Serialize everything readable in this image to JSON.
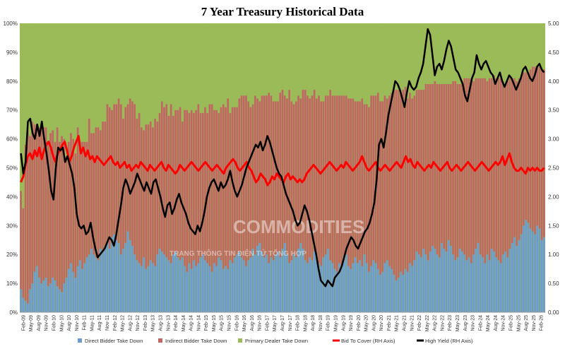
{
  "chart_data": {
    "type": "bar",
    "title": "7 Year Treasury Historical Data",
    "left_axis": {
      "min": 0,
      "max": 100,
      "unit": "%",
      "ticks": [
        "0%",
        "10%",
        "20%",
        "30%",
        "40%",
        "50%",
        "60%",
        "70%",
        "80%",
        "90%",
        "100%"
      ]
    },
    "right_axis": {
      "min": 0,
      "max": 5,
      "ticks": [
        "0.00",
        "0.50",
        "1.00",
        "1.50",
        "2.00",
        "2.50",
        "3.00",
        "3.50",
        "4.00",
        "4.50",
        "5.00"
      ]
    },
    "x_ticks": [
      "Feb-09",
      "May-09",
      "Aug-09",
      "Nov-09",
      "Feb-10",
      "May-10",
      "Aug-10",
      "Nov-10",
      "Feb-11",
      "May-11",
      "Aug-11",
      "Nov-11",
      "Feb-12",
      "May-12",
      "Aug-12",
      "Nov-12",
      "Feb-13",
      "May-13",
      "Aug-13",
      "Nov-13",
      "Feb-14",
      "May-14",
      "Aug-14",
      "Nov-14",
      "Feb-15",
      "May-15",
      "Aug-15",
      "Nov-15",
      "Feb-16",
      "May-16",
      "Aug-16",
      "Nov-16",
      "Feb-17",
      "May-17",
      "Aug-17",
      "Nov-17",
      "Feb-18",
      "May-18",
      "Aug-18",
      "Nov-18",
      "Feb-19",
      "May-19",
      "Aug-19",
      "Nov-19",
      "Feb-20",
      "May-20",
      "Aug-20",
      "Nov-20",
      "Feb-21",
      "May-21",
      "Aug-21",
      "Nov-21",
      "Feb-22",
      "May-22",
      "Aug-22",
      "Nov-22",
      "Feb-23",
      "May-23",
      "Aug-23",
      "Nov-23",
      "Feb-24",
      "May-24",
      "Aug-24",
      "Nov-24",
      "Feb-25",
      "May-25",
      "Aug-25",
      "Nov-25",
      "Feb-26"
    ],
    "series": [
      {
        "name": "Direct Bidder Take Down",
        "axis": "left",
        "stack": "bars",
        "color": "#6b9bd2",
        "values": [
          8,
          5,
          4,
          3,
          8,
          10,
          14,
          16,
          12,
          10,
          11,
          12,
          9,
          10,
          12,
          11,
          9,
          8,
          7,
          10,
          12,
          15,
          17,
          14,
          12,
          16,
          18,
          15,
          17,
          19,
          20,
          22,
          20,
          19,
          18,
          22,
          21,
          23,
          24,
          22,
          26,
          27,
          25,
          24,
          20,
          22,
          24,
          28,
          25,
          23,
          20,
          18,
          17,
          16,
          19,
          15,
          16,
          18,
          17,
          16,
          20,
          22,
          21,
          20,
          19,
          18,
          17,
          20,
          21,
          19,
          18,
          19,
          16,
          14,
          17,
          15,
          18,
          16,
          17,
          19,
          20,
          18,
          17,
          16,
          14,
          17,
          16,
          19,
          18,
          15,
          16,
          15,
          18,
          17,
          19,
          20,
          21,
          19,
          18,
          16,
          18,
          19,
          22,
          20,
          23,
          24,
          21,
          19,
          20,
          17,
          19,
          18,
          20,
          21,
          19,
          22,
          24,
          20,
          17,
          18,
          20,
          19,
          22,
          24,
          22,
          18,
          17,
          19,
          18,
          21,
          20,
          17,
          16,
          19,
          20,
          22,
          18,
          17,
          15,
          14,
          17,
          16,
          18,
          20,
          16,
          15,
          17,
          19,
          17,
          18,
          16,
          20,
          17,
          14,
          16,
          18,
          17,
          15,
          13,
          14,
          17,
          18,
          16,
          15,
          13,
          11,
          12,
          14,
          13,
          15,
          14,
          17,
          16,
          18,
          21,
          20,
          19,
          22,
          20,
          18,
          21,
          23,
          22,
          20,
          19,
          24,
          22,
          21,
          25,
          23,
          20,
          18,
          19,
          22,
          21,
          20,
          18,
          19,
          17,
          20,
          22,
          24,
          20,
          19,
          17,
          20,
          18,
          22,
          21,
          19,
          18,
          17,
          20,
          21,
          19,
          22,
          24,
          26,
          23,
          25,
          27,
          30,
          32,
          31,
          29,
          28,
          27,
          30,
          29,
          25,
          26
        ]
      },
      {
        "name": "Indirect Bidder Take Down",
        "axis": "left",
        "stack": "bars",
        "color": "#c06663",
        "values": [
          34,
          31,
          54,
          60,
          53,
          56,
          51,
          49,
          52,
          55,
          53,
          52,
          50,
          52,
          51,
          48,
          55,
          51,
          54,
          50,
          42,
          44,
          45,
          46,
          43,
          48,
          41,
          44,
          42,
          40,
          47,
          40,
          42,
          45,
          46,
          41,
          45,
          43,
          48,
          49,
          44,
          45,
          47,
          50,
          52,
          45,
          47,
          44,
          49,
          50,
          52,
          49,
          52,
          48,
          44,
          50,
          49,
          48,
          47,
          51,
          46,
          47,
          52,
          51,
          53,
          50,
          55,
          48,
          49,
          51,
          53,
          47,
          54,
          56,
          52,
          55,
          51,
          54,
          55,
          50,
          49,
          53,
          52,
          56,
          58,
          53,
          54,
          50,
          53,
          57,
          55,
          59,
          51,
          54,
          52,
          51,
          53,
          56,
          57,
          59,
          55,
          52,
          50,
          55,
          51,
          49,
          54,
          56,
          55,
          59,
          56,
          55,
          53,
          52,
          57,
          55,
          51,
          54,
          60,
          55,
          52,
          54,
          53,
          50,
          55,
          59,
          58,
          55,
          57,
          56,
          54,
          58,
          57,
          54,
          55,
          53,
          59,
          58,
          60,
          61,
          58,
          59,
          57,
          55,
          58,
          59,
          57,
          54,
          56,
          55,
          58,
          52,
          55,
          57,
          59,
          57,
          58,
          61,
          60,
          59,
          58,
          56,
          59,
          61,
          64,
          66,
          65,
          62,
          64,
          63,
          60,
          59,
          58,
          57,
          56,
          57,
          58,
          55,
          59,
          61,
          58,
          56,
          58,
          59,
          60,
          55,
          57,
          58,
          54,
          56,
          60,
          62,
          60,
          57,
          59,
          61,
          63,
          62,
          64,
          60,
          59,
          57,
          61,
          62,
          64,
          60,
          63,
          59,
          61,
          62,
          63,
          64,
          60,
          58,
          61,
          59,
          57,
          55,
          57,
          56,
          55,
          53,
          51,
          52,
          55,
          57,
          58,
          55,
          56,
          59,
          58
        ]
      },
      {
        "name": "Primary Dealer Take Down",
        "axis": "left",
        "stack": "bars",
        "color": "#9bbb59",
        "values": [
          58,
          64,
          42,
          37,
          39,
          34,
          35,
          35,
          36,
          35,
          36,
          36,
          41,
          38,
          37,
          41,
          36,
          41,
          39,
          40,
          46,
          41,
          38,
          40,
          45,
          36,
          41,
          41,
          41,
          41,
          33,
          38,
          38,
          36,
          36,
          37,
          34,
          34,
          28,
          29,
          30,
          28,
          28,
          26,
          28,
          33,
          29,
          28,
          26,
          27,
          28,
          33,
          31,
          36,
          37,
          35,
          35,
          34,
          36,
          33,
          34,
          31,
          27,
          29,
          28,
          32,
          28,
          32,
          30,
          30,
          29,
          34,
          30,
          30,
          31,
          30,
          31,
          30,
          28,
          31,
          31,
          29,
          31,
          28,
          28,
          30,
          30,
          31,
          29,
          28,
          29,
          26,
          31,
          29,
          29,
          29,
          26,
          25,
          25,
          25,
          27,
          29,
          28,
          25,
          26,
          27,
          25,
          25,
          25,
          24,
          25,
          27,
          27,
          27,
          24,
          23,
          25,
          26,
          23,
          27,
          28,
          27,
          25,
          26,
          23,
          23,
          25,
          26,
          25,
          23,
          26,
          25,
          27,
          27,
          25,
          25,
          23,
          25,
          25,
          25,
          25,
          25,
          25,
          25,
          26,
          26,
          26,
          27,
          27,
          27,
          26,
          28,
          28,
          29,
          25,
          25,
          25,
          24,
          27,
          27,
          25,
          26,
          25,
          24,
          23,
          23,
          23,
          24,
          23,
          22,
          26,
          24,
          26,
          25,
          23,
          23,
          23,
          23,
          21,
          21,
          21,
          21,
          20,
          21,
          21,
          21,
          21,
          21,
          21,
          21,
          20,
          20,
          21,
          21,
          20,
          19,
          19,
          19,
          19,
          20,
          19,
          19,
          19,
          19,
          19,
          20,
          19,
          19,
          18,
          19,
          19,
          19,
          20,
          21,
          20,
          19,
          19,
          19,
          20,
          19,
          18,
          17,
          17,
          17,
          16,
          15,
          15,
          15,
          15,
          16,
          16
        ]
      },
      {
        "name": "Bid To Cover (RH Axis)",
        "axis": "right",
        "type": "line",
        "color": "#ff0000",
        "values": [
          2.25,
          2.35,
          2.55,
          2.7,
          2.75,
          2.65,
          2.8,
          2.7,
          2.85,
          2.65,
          2.8,
          2.9,
          2.95,
          2.85,
          2.7,
          2.6,
          2.75,
          2.8,
          2.9,
          2.95,
          2.8,
          2.6,
          2.7,
          2.85,
          2.95,
          3.05,
          2.75,
          2.85,
          2.7,
          2.8,
          2.65,
          2.7,
          2.6,
          2.7,
          2.65,
          2.6,
          2.55,
          2.6,
          2.65,
          2.7,
          2.6,
          2.55,
          2.6,
          2.5,
          2.55,
          2.6,
          2.5,
          2.55,
          2.45,
          2.5,
          2.55,
          2.5,
          2.6,
          2.55,
          2.5,
          2.45,
          2.55,
          2.5,
          2.45,
          2.5,
          2.55,
          2.6,
          2.5,
          2.45,
          2.55,
          2.5,
          2.45,
          2.4,
          2.45,
          2.55,
          2.5,
          2.45,
          2.5,
          2.55,
          2.6,
          2.55,
          2.5,
          2.45,
          2.5,
          2.55,
          2.6,
          2.55,
          2.5,
          2.45,
          2.5,
          2.55,
          2.5,
          2.45,
          2.4,
          2.5,
          2.55,
          2.6,
          2.65,
          2.6,
          2.5,
          2.45,
          2.5,
          2.55,
          2.6,
          2.5,
          2.45,
          2.35,
          2.25,
          2.3,
          2.4,
          2.35,
          2.3,
          2.2,
          2.25,
          2.35,
          2.3,
          2.4,
          2.35,
          2.3,
          2.25,
          2.35,
          2.4,
          2.3,
          2.35,
          2.3,
          2.25,
          2.3,
          2.25,
          2.3,
          2.4,
          2.45,
          2.5,
          2.55,
          2.5,
          2.45,
          2.4,
          2.45,
          2.5,
          2.55,
          2.6,
          2.55,
          2.5,
          2.45,
          2.5,
          2.55,
          2.5,
          2.6,
          2.55,
          2.5,
          2.45,
          2.5,
          2.55,
          2.6,
          2.7,
          2.6,
          2.5,
          2.45,
          2.5,
          2.55,
          2.6,
          2.5,
          2.45,
          2.5,
          2.55,
          2.5,
          2.45,
          2.5,
          2.55,
          2.6,
          2.55,
          2.5,
          2.6,
          2.7,
          2.6,
          2.65,
          2.55,
          2.5,
          2.6,
          2.55,
          2.5,
          2.45,
          2.5,
          2.55,
          2.5,
          2.6,
          2.55,
          2.5,
          2.45,
          2.5,
          2.55,
          2.6,
          2.5,
          2.45,
          2.5,
          2.55,
          2.5,
          2.45,
          2.5,
          2.55,
          2.6,
          2.55,
          2.5,
          2.45,
          2.5,
          2.55,
          2.6,
          2.55,
          2.5,
          2.45,
          2.5,
          2.55,
          2.6,
          2.55,
          2.6,
          2.7,
          2.55,
          2.65,
          2.75,
          2.6,
          2.5,
          2.45,
          2.45,
          2.5,
          2.45,
          2.4,
          2.5,
          2.45,
          2.5,
          2.45,
          2.5,
          2.45,
          2.45,
          2.5
        ]
      },
      {
        "name": "High Yield (RH Axis)",
        "axis": "right",
        "type": "line",
        "color": "#000000",
        "values": [
          2.75,
          2.4,
          2.6,
          3.3,
          3.35,
          3.1,
          3.0,
          3.25,
          3.05,
          3.3,
          3.0,
          2.75,
          2.45,
          2.1,
          1.95,
          2.5,
          2.85,
          2.8,
          2.85,
          2.6,
          2.7,
          2.55,
          2.4,
          2.15,
          1.7,
          1.5,
          1.45,
          1.5,
          1.35,
          1.4,
          1.55,
          1.3,
          1.1,
          0.95,
          1.0,
          1.05,
          1.1,
          1.2,
          1.3,
          1.25,
          1.15,
          1.35,
          1.6,
          1.85,
          2.15,
          2.3,
          2.2,
          2.05,
          2.15,
          2.25,
          2.4,
          2.3,
          2.2,
          2.1,
          2.25,
          2.15,
          2.05,
          2.25,
          2.3,
          2.15,
          2.0,
          1.8,
          1.65,
          1.85,
          1.9,
          1.7,
          1.8,
          1.95,
          2.05,
          1.9,
          1.8,
          1.7,
          1.55,
          1.45,
          1.4,
          1.35,
          1.5,
          1.4,
          1.55,
          1.75,
          2.0,
          2.15,
          2.25,
          2.3,
          2.2,
          2.1,
          2.25,
          2.15,
          2.2,
          2.3,
          2.45,
          2.25,
          2.1,
          2.0,
          2.1,
          2.2,
          2.35,
          2.5,
          2.6,
          2.7,
          2.8,
          2.9,
          2.85,
          2.95,
          2.8,
          2.9,
          3.05,
          2.95,
          2.8,
          2.65,
          2.5,
          2.4,
          2.35,
          2.2,
          2.05,
          1.95,
          1.85,
          1.75,
          1.6,
          1.5,
          1.55,
          1.7,
          1.85,
          1.75,
          1.6,
          1.4,
          1.2,
          1.0,
          0.75,
          0.55,
          0.5,
          0.45,
          0.55,
          0.5,
          0.45,
          0.6,
          0.65,
          0.7,
          0.8,
          0.95,
          1.1,
          1.2,
          1.3,
          1.25,
          1.15,
          1.1,
          1.2,
          1.3,
          1.4,
          1.45,
          1.55,
          1.7,
          1.9,
          2.3,
          2.9,
          3.0,
          2.85,
          3.1,
          3.4,
          3.6,
          3.8,
          4.0,
          3.95,
          3.85,
          3.7,
          3.55,
          3.8,
          4.0,
          3.9,
          3.85,
          3.9,
          4.05,
          4.15,
          4.3,
          4.6,
          4.9,
          4.8,
          4.45,
          4.1,
          4.25,
          4.3,
          4.2,
          4.35,
          4.55,
          4.7,
          4.6,
          4.4,
          4.2,
          4.15,
          4.05,
          3.95,
          3.75,
          3.65,
          3.85,
          4.05,
          4.15,
          4.45,
          4.3,
          4.2,
          4.3,
          4.35,
          4.25,
          4.15,
          4.1,
          3.95,
          4.05,
          4.15,
          4.0,
          3.9,
          4.0,
          4.1,
          4.05,
          3.95,
          3.85,
          3.95,
          4.05,
          4.2,
          4.25,
          4.15,
          4.05,
          4.0,
          4.1,
          4.25,
          4.3,
          4.2,
          4.15
        ]
      }
    ],
    "legend": {
      "placement": "bottom"
    }
  },
  "watermark": {
    "text": "COMMODITIES",
    "subtext": "TRANG THÔNG TIN ĐIỆN TỬ TỔNG HỢP"
  }
}
